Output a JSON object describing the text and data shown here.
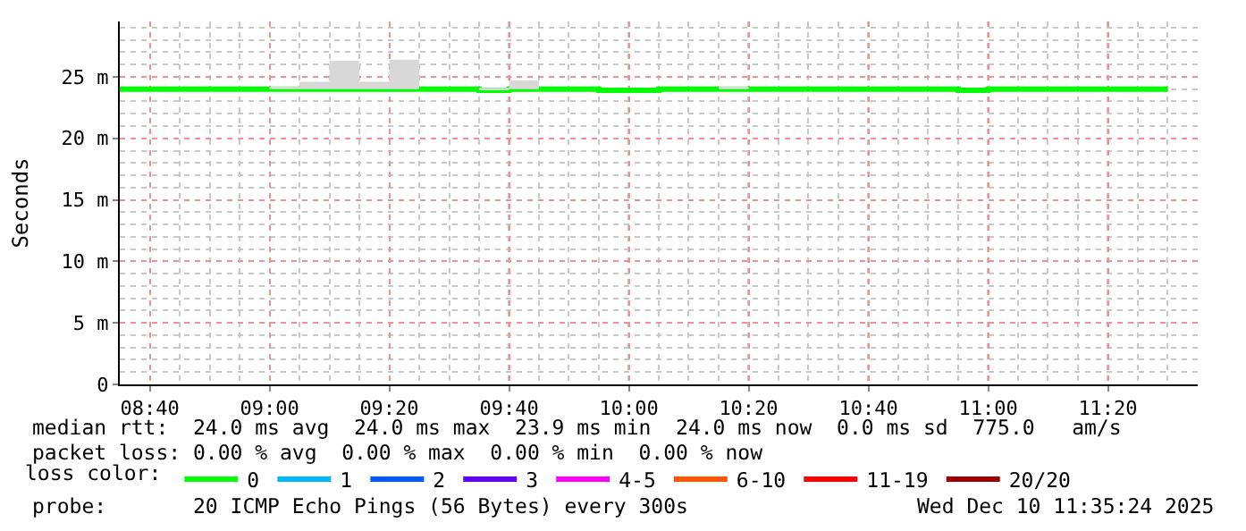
{
  "chart_data": {
    "type": "step",
    "ylabel": "Seconds",
    "x": [
      8.5833,
      8.6667,
      8.75,
      8.8333,
      8.9167,
      9.0,
      9.0833,
      9.1667,
      9.25,
      9.3333,
      9.4167,
      9.5,
      9.5833,
      9.6667,
      9.75,
      9.8333,
      9.9167,
      10.0,
      10.0833,
      10.1667,
      10.25,
      10.3333,
      10.4167,
      10.5,
      10.5833,
      10.6667,
      10.75,
      10.8333,
      10.9167,
      11.0,
      11.0833,
      11.1667,
      11.25,
      11.3333,
      11.4167,
      11.5
    ],
    "series": [
      {
        "name": "0",
        "color": "#00ff00",
        "values": [
          24.0,
          24.0,
          24.0,
          24.0,
          24.0,
          24.0,
          24.0,
          24.0,
          24.0,
          24.0,
          24.0,
          24.0,
          23.9,
          24.0,
          24.0,
          24.0,
          23.9,
          23.9,
          24.0,
          24.0,
          24.0,
          24.0,
          24.0,
          24.0,
          24.0,
          24.0,
          24.0,
          24.0,
          23.9,
          24.0,
          24.0,
          24.0,
          24.0,
          24.0,
          24.0,
          24.0
        ],
        "lower": [
          24.0,
          24.0,
          24.0,
          24.0,
          24.0,
          24.0,
          24.0,
          24.0,
          24.0,
          24.0,
          24.0,
          24.0,
          23.9,
          24.0,
          24.0,
          24.0,
          23.9,
          23.9,
          24.0,
          24.0,
          24.0,
          24.0,
          24.0,
          24.0,
          24.0,
          24.0,
          24.0,
          24.0,
          23.9,
          24.0,
          24.0,
          24.0,
          24.0,
          24.0,
          24.0,
          24.0
        ],
        "upper": [
          24.0,
          24.0,
          24.0,
          24.0,
          24.0,
          24.2,
          24.6,
          26.3,
          24.6,
          26.4,
          24.0,
          24.0,
          24.1,
          24.7,
          24.0,
          24.0,
          23.9,
          23.9,
          24.0,
          24.0,
          24.2,
          24.0,
          24.0,
          24.0,
          24.0,
          24.0,
          24.0,
          24.0,
          23.9,
          24.0,
          24.0,
          24.0,
          24.0,
          24.0,
          24.0,
          24.0
        ]
      },
      {
        "name": "1",
        "color": "#00b8ff",
        "values": [
          null,
          null,
          null,
          null,
          null,
          null,
          null,
          null,
          null,
          null,
          null,
          null,
          null,
          null,
          null,
          null,
          null,
          null,
          null,
          null,
          null,
          null,
          null,
          null,
          null,
          null,
          null,
          null,
          null,
          null,
          null,
          null,
          null,
          null,
          null,
          null
        ]
      },
      {
        "name": "2",
        "color": "#0059ff",
        "values": [
          null,
          null,
          null,
          null,
          null,
          null,
          null,
          null,
          null,
          null,
          null,
          null,
          null,
          null,
          null,
          null,
          null,
          null,
          null,
          null,
          null,
          null,
          null,
          null,
          null,
          null,
          null,
          null,
          null,
          null,
          null,
          null,
          null,
          null,
          null,
          null
        ]
      },
      {
        "name": "3",
        "color": "#5e00ff",
        "values": [
          null,
          null,
          null,
          null,
          null,
          null,
          null,
          null,
          null,
          null,
          null,
          null,
          null,
          null,
          null,
          null,
          null,
          null,
          null,
          null,
          null,
          null,
          null,
          null,
          null,
          null,
          null,
          null,
          null,
          null,
          null,
          null,
          null,
          null,
          null,
          null
        ]
      },
      {
        "name": "4-5",
        "color": "#ff00ff",
        "values": [
          null,
          null,
          null,
          null,
          null,
          null,
          null,
          null,
          null,
          null,
          null,
          null,
          null,
          null,
          null,
          null,
          null,
          null,
          null,
          null,
          null,
          null,
          null,
          null,
          null,
          null,
          null,
          null,
          null,
          null,
          null,
          null,
          null,
          null,
          null,
          null
        ]
      },
      {
        "name": "6-10",
        "color": "#ff5500",
        "values": [
          null,
          null,
          null,
          null,
          null,
          null,
          null,
          null,
          null,
          null,
          null,
          null,
          null,
          null,
          null,
          null,
          null,
          null,
          null,
          null,
          null,
          null,
          null,
          null,
          null,
          null,
          null,
          null,
          null,
          null,
          null,
          null,
          null,
          null,
          null,
          null
        ]
      },
      {
        "name": "11-19",
        "color": "#ff0000",
        "values": [
          null,
          null,
          null,
          null,
          null,
          null,
          null,
          null,
          null,
          null,
          null,
          null,
          null,
          null,
          null,
          null,
          null,
          null,
          null,
          null,
          null,
          null,
          null,
          null,
          null,
          null,
          null,
          null,
          null,
          null,
          null,
          null,
          null,
          null,
          null,
          null
        ]
      },
      {
        "name": "20/20",
        "color": "#a10000",
        "values": [
          null,
          null,
          null,
          null,
          null,
          null,
          null,
          null,
          null,
          null,
          null,
          null,
          null,
          null,
          null,
          null,
          null,
          null,
          null,
          null,
          null,
          null,
          null,
          null,
          null,
          null,
          null,
          null,
          null,
          null,
          null,
          null,
          null,
          null,
          null,
          null
        ]
      }
    ],
    "legend_title": "loss color:",
    "legend": "bottom",
    "xlim": [
      8.5833,
      11.5833
    ],
    "xticks": [
      {
        "value": 8.6667,
        "label": "08:40"
      },
      {
        "value": 9.0,
        "label": "09:00"
      },
      {
        "value": 9.3333,
        "label": "09:20"
      },
      {
        "value": 9.6667,
        "label": "09:40"
      },
      {
        "value": 10.0,
        "label": "10:00"
      },
      {
        "value": 10.3333,
        "label": "10:20"
      },
      {
        "value": 10.6667,
        "label": "10:40"
      },
      {
        "value": 11.0,
        "label": "11:00"
      },
      {
        "value": 11.3333,
        "label": "11:20"
      }
    ],
    "ylim": [
      0,
      29.5
    ],
    "yticks": [
      0,
      {
        "value": 5,
        "label": "5 m"
      },
      {
        "value": 10,
        "label": "10 m"
      },
      {
        "value": 15,
        "label": "15 m"
      },
      {
        "value": 20,
        "label": "20 m"
      },
      {
        "value": 25,
        "label": "25 m"
      }
    ],
    "grid": true,
    "annotations": [
      "median rtt:  24.0 ms avg  24.0 ms max  23.9 ms min  24.0 ms now  0.0 ms sd  775.0   am/s",
      "packet loss: 0.00 % avg  0.00 % max  0.00 % min  0.00 % now",
      "probe:       20 ICMP Echo Pings (56 Bytes) every 300s",
      "Wed Dec 10 11:35:24 2025"
    ]
  }
}
